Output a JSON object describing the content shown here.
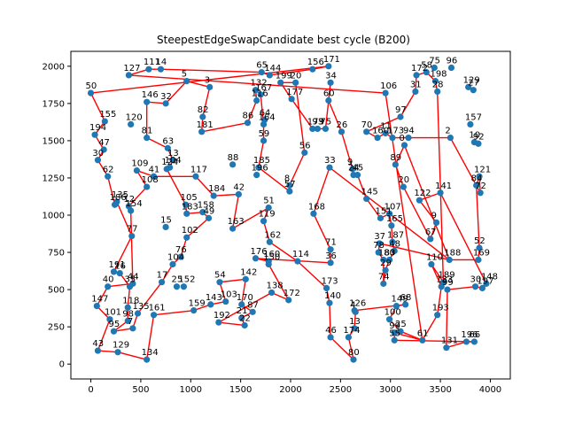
{
  "chart_data": {
    "type": "scatter",
    "title": "SteepestEdgeSwapCandidate best cycle (B200)",
    "xlabel": "",
    "ylabel": "",
    "xlim": [
      -200,
      4200
    ],
    "ylim": [
      -100,
      2100
    ],
    "x_ticks": [
      0,
      500,
      1000,
      1500,
      2000,
      2500,
      3000,
      3500,
      4000
    ],
    "y_ticks": [
      0,
      250,
      500,
      750,
      1000,
      1250,
      1500,
      1750,
      2000
    ],
    "grid": false,
    "legend": "none",
    "colors": {
      "points": "#1f77b4",
      "cycle": "#ff0000"
    },
    "points": [
      {
        "id": "50",
        "x": 0,
        "y": 1820
      },
      {
        "id": "127",
        "x": 380,
        "y": 1940
      },
      {
        "id": "111",
        "x": 580,
        "y": 1980
      },
      {
        "id": "14",
        "x": 700,
        "y": 1980
      },
      {
        "id": "5",
        "x": 960,
        "y": 1900
      },
      {
        "id": "3",
        "x": 1190,
        "y": 1860
      },
      {
        "id": "146",
        "x": 560,
        "y": 1760
      },
      {
        "id": "32",
        "x": 750,
        "y": 1750
      },
      {
        "id": "155",
        "x": 140,
        "y": 1630
      },
      {
        "id": "120",
        "x": 400,
        "y": 1610
      },
      {
        "id": "194",
        "x": 40,
        "y": 1540
      },
      {
        "id": "81",
        "x": 560,
        "y": 1520
      },
      {
        "id": "82",
        "x": 1120,
        "y": 1660
      },
      {
        "id": "181",
        "x": 1110,
        "y": 1560
      },
      {
        "id": "86",
        "x": 1570,
        "y": 1620
      },
      {
        "id": "65",
        "x": 1710,
        "y": 1960
      },
      {
        "id": "144",
        "x": 1790,
        "y": 1940
      },
      {
        "id": "156",
        "x": 2220,
        "y": 1980
      },
      {
        "id": "171",
        "x": 2380,
        "y": 2000
      },
      {
        "id": "132",
        "x": 1650,
        "y": 1840
      },
      {
        "id": "116",
        "x": 1660,
        "y": 1770
      },
      {
        "id": "167",
        "x": 1700,
        "y": 1810
      },
      {
        "id": "199",
        "x": 1900,
        "y": 1890
      },
      {
        "id": "20",
        "x": 2050,
        "y": 1890
      },
      {
        "id": "34",
        "x": 2400,
        "y": 1890
      },
      {
        "id": "177",
        "x": 2010,
        "y": 1780
      },
      {
        "id": "60",
        "x": 2380,
        "y": 1770
      },
      {
        "id": "64",
        "x": 1740,
        "y": 1640
      },
      {
        "id": "164",
        "x": 1730,
        "y": 1610
      },
      {
        "id": "59",
        "x": 1730,
        "y": 1500
      },
      {
        "id": "179",
        "x": 2220,
        "y": 1580
      },
      {
        "id": "93",
        "x": 2270,
        "y": 1580
      },
      {
        "id": "75",
        "x": 2350,
        "y": 1580
      },
      {
        "id": "26",
        "x": 2510,
        "y": 1560
      },
      {
        "id": "56",
        "x": 2140,
        "y": 1420
      },
      {
        "id": "33",
        "x": 2390,
        "y": 1320
      },
      {
        "id": "47",
        "x": 130,
        "y": 1440
      },
      {
        "id": "30",
        "x": 70,
        "y": 1370
      },
      {
        "id": "109",
        "x": 460,
        "y": 1300
      },
      {
        "id": "41",
        "x": 630,
        "y": 1260
      },
      {
        "id": "63",
        "x": 770,
        "y": 1450
      },
      {
        "id": "13",
        "x": 820,
        "y": 1370
      },
      {
        "id": "104",
        "x": 790,
        "y": 1320
      },
      {
        "id": "124",
        "x": 760,
        "y": 1310
      },
      {
        "id": "62",
        "x": 170,
        "y": 1260
      },
      {
        "id": "108",
        "x": 560,
        "y": 1190
      },
      {
        "id": "117",
        "x": 1050,
        "y": 1260
      },
      {
        "id": "88",
        "x": 1420,
        "y": 1340
      },
      {
        "id": "185",
        "x": 1680,
        "y": 1320
      },
      {
        "id": "196",
        "x": 1660,
        "y": 1270
      },
      {
        "id": "8",
        "x": 1990,
        "y": 1200
      },
      {
        "id": "57",
        "x": 1990,
        "y": 1160
      },
      {
        "id": "42",
        "x": 1480,
        "y": 1140
      },
      {
        "id": "184",
        "x": 1230,
        "y": 1130
      },
      {
        "id": "135",
        "x": 260,
        "y": 1090
      },
      {
        "id": "186",
        "x": 240,
        "y": 1070
      },
      {
        "id": "12",
        "x": 380,
        "y": 1060
      },
      {
        "id": "154",
        "x": 400,
        "y": 1030
      },
      {
        "id": "105",
        "x": 950,
        "y": 1070
      },
      {
        "id": "183",
        "x": 960,
        "y": 1010
      },
      {
        "id": "158",
        "x": 1120,
        "y": 1020
      },
      {
        "id": "49",
        "x": 1180,
        "y": 980
      },
      {
        "id": "163",
        "x": 1420,
        "y": 910
      },
      {
        "id": "51",
        "x": 1780,
        "y": 1050
      },
      {
        "id": "119",
        "x": 1730,
        "y": 960
      },
      {
        "id": "168",
        "x": 2230,
        "y": 1010
      },
      {
        "id": "15",
        "x": 750,
        "y": 920
      },
      {
        "id": "77",
        "x": 410,
        "y": 860
      },
      {
        "id": "102",
        "x": 960,
        "y": 850
      },
      {
        "id": "76",
        "x": 900,
        "y": 720
      },
      {
        "id": "104b",
        "x": 820,
        "y": 670
      },
      {
        "id": "162",
        "x": 1790,
        "y": 820
      },
      {
        "id": "176",
        "x": 1650,
        "y": 710
      },
      {
        "id": "160",
        "x": 1780,
        "y": 690
      },
      {
        "id": "150",
        "x": 1780,
        "y": 670
      },
      {
        "id": "114",
        "x": 2070,
        "y": 690
      },
      {
        "id": "71",
        "x": 2400,
        "y": 770
      },
      {
        "id": "36",
        "x": 2400,
        "y": 680
      },
      {
        "id": "191",
        "x": 230,
        "y": 620
      },
      {
        "id": "16",
        "x": 290,
        "y": 610
      },
      {
        "id": "40",
        "x": 170,
        "y": 520
      },
      {
        "id": "44",
        "x": 420,
        "y": 540
      },
      {
        "id": "35",
        "x": 390,
        "y": 520
      },
      {
        "id": "17",
        "x": 710,
        "y": 550
      },
      {
        "id": "25",
        "x": 860,
        "y": 520
      },
      {
        "id": "152",
        "x": 930,
        "y": 520
      },
      {
        "id": "54",
        "x": 1290,
        "y": 550
      },
      {
        "id": "142",
        "x": 1550,
        "y": 570
      },
      {
        "id": "138",
        "x": 1810,
        "y": 480
      },
      {
        "id": "172",
        "x": 1980,
        "y": 430
      },
      {
        "id": "173",
        "x": 2360,
        "y": 510
      },
      {
        "id": "147",
        "x": 60,
        "y": 390
      },
      {
        "id": "118",
        "x": 370,
        "y": 380
      },
      {
        "id": "135b",
        "x": 470,
        "y": 340
      },
      {
        "id": "161",
        "x": 630,
        "y": 330
      },
      {
        "id": "159",
        "x": 1030,
        "y": 360
      },
      {
        "id": "143",
        "x": 1200,
        "y": 400
      },
      {
        "id": "103",
        "x": 1350,
        "y": 420
      },
      {
        "id": "170",
        "x": 1510,
        "y": 400
      },
      {
        "id": "87",
        "x": 1620,
        "y": 350
      },
      {
        "id": "140",
        "x": 2390,
        "y": 410
      },
      {
        "id": "101",
        "x": 190,
        "y": 300
      },
      {
        "id": "98",
        "x": 370,
        "y": 290
      },
      {
        "id": "192",
        "x": 1280,
        "y": 280
      },
      {
        "id": "21",
        "x": 1510,
        "y": 310
      },
      {
        "id": "22",
        "x": 1540,
        "y": 260
      },
      {
        "id": "95",
        "x": 230,
        "y": 220
      },
      {
        "id": "7",
        "x": 420,
        "y": 240
      },
      {
        "id": "43",
        "x": 70,
        "y": 90
      },
      {
        "id": "129",
        "x": 270,
        "y": 80
      },
      {
        "id": "134",
        "x": 560,
        "y": 30
      },
      {
        "id": "46",
        "x": 2400,
        "y": 180
      },
      {
        "id": "174",
        "x": 2580,
        "y": 180
      },
      {
        "id": "80",
        "x": 2630,
        "y": 30
      },
      {
        "id": "106",
        "x": 2950,
        "y": 1820
      },
      {
        "id": "70",
        "x": 2760,
        "y": 1560
      },
      {
        "id": "11",
        "x": 2950,
        "y": 1550
      },
      {
        "id": "160b",
        "x": 2870,
        "y": 1520
      },
      {
        "id": "173b",
        "x": 3020,
        "y": 1520
      },
      {
        "id": "97",
        "x": 3100,
        "y": 1660
      },
      {
        "id": "31",
        "x": 3250,
        "y": 1830
      },
      {
        "id": "172b",
        "x": 3260,
        "y": 1940
      },
      {
        "id": "58",
        "x": 3360,
        "y": 1960
      },
      {
        "id": "75b",
        "x": 3440,
        "y": 1990
      },
      {
        "id": "198",
        "x": 3450,
        "y": 1900
      },
      {
        "id": "28",
        "x": 3470,
        "y": 1830
      },
      {
        "id": "96",
        "x": 3610,
        "y": 1990
      },
      {
        "id": "129b",
        "x": 3780,
        "y": 1860
      },
      {
        "id": "27",
        "x": 3830,
        "y": 1840
      },
      {
        "id": "157",
        "x": 3800,
        "y": 1610
      },
      {
        "id": "2",
        "x": 3600,
        "y": 1520
      },
      {
        "id": "94",
        "x": 3180,
        "y": 1520
      },
      {
        "id": "10",
        "x": 3840,
        "y": 1490
      },
      {
        "id": "92",
        "x": 3880,
        "y": 1480
      },
      {
        "id": "0",
        "x": 3140,
        "y": 1470
      },
      {
        "id": "89",
        "x": 3050,
        "y": 1340
      },
      {
        "id": "9",
        "x": 2620,
        "y": 1310
      },
      {
        "id": "24",
        "x": 2630,
        "y": 1270
      },
      {
        "id": "45",
        "x": 2670,
        "y": 1270
      },
      {
        "id": "20b",
        "x": 3130,
        "y": 1190
      },
      {
        "id": "145",
        "x": 2760,
        "y": 1110
      },
      {
        "id": "122",
        "x": 3290,
        "y": 1100
      },
      {
        "id": "141",
        "x": 3500,
        "y": 1150
      },
      {
        "id": "84",
        "x": 3860,
        "y": 1200
      },
      {
        "id": "121",
        "x": 3890,
        "y": 1260
      },
      {
        "id": "72",
        "x": 3900,
        "y": 1150
      },
      {
        "id": "107",
        "x": 2990,
        "y": 1010
      },
      {
        "id": "151",
        "x": 2900,
        "y": 980
      },
      {
        "id": "165",
        "x": 3010,
        "y": 930
      },
      {
        "id": "9b",
        "x": 3460,
        "y": 950
      },
      {
        "id": "67",
        "x": 3400,
        "y": 840
      },
      {
        "id": "37",
        "x": 2890,
        "y": 810
      },
      {
        "id": "187",
        "x": 3020,
        "y": 820
      },
      {
        "id": "48",
        "x": 3040,
        "y": 760
      },
      {
        "id": "78",
        "x": 2880,
        "y": 750
      },
      {
        "id": "180",
        "x": 2930,
        "y": 700
      },
      {
        "id": "83",
        "x": 2990,
        "y": 700
      },
      {
        "id": "29",
        "x": 2950,
        "y": 630
      },
      {
        "id": "74",
        "x": 2930,
        "y": 540
      },
      {
        "id": "188",
        "x": 3590,
        "y": 700
      },
      {
        "id": "169",
        "x": 3880,
        "y": 700
      },
      {
        "id": "52",
        "x": 3890,
        "y": 780
      },
      {
        "id": "110",
        "x": 3410,
        "y": 670
      },
      {
        "id": "148",
        "x": 3960,
        "y": 540
      },
      {
        "id": "189",
        "x": 3530,
        "y": 550
      },
      {
        "id": "133",
        "x": 3510,
        "y": 520
      },
      {
        "id": "99",
        "x": 3570,
        "y": 500
      },
      {
        "id": "30b",
        "x": 3850,
        "y": 520
      },
      {
        "id": "197",
        "x": 3920,
        "y": 510
      },
      {
        "id": "126",
        "x": 2640,
        "y": 360
      },
      {
        "id": "149",
        "x": 3060,
        "y": 390
      },
      {
        "id": "68",
        "x": 3150,
        "y": 400
      },
      {
        "id": "193",
        "x": 3470,
        "y": 330
      },
      {
        "id": "100",
        "x": 2990,
        "y": 300
      },
      {
        "id": "25b",
        "x": 3100,
        "y": 220
      },
      {
        "id": "99b",
        "x": 3040,
        "y": 210
      },
      {
        "id": "55",
        "x": 3040,
        "y": 160
      },
      {
        "id": "61",
        "x": 3320,
        "y": 160
      },
      {
        "id": "131",
        "x": 3560,
        "y": 110
      },
      {
        "id": "196b",
        "x": 3760,
        "y": 150
      },
      {
        "id": "66",
        "x": 3840,
        "y": 150
      },
      {
        "id": "4",
        "x": 2650,
        "y": 350
      },
      {
        "id": "13b",
        "x": 2640,
        "y": 240
      }
    ],
    "cycle": [
      "50",
      "155",
      "194",
      "47",
      "30",
      "62",
      "186",
      "135",
      "77",
      "191",
      "16",
      "35",
      "118",
      "98",
      "95",
      "7",
      "135b",
      "17",
      "104b",
      "76",
      "102",
      "49",
      "158",
      "183",
      "105",
      "124",
      "104",
      "13",
      "63",
      "81",
      "146",
      "32",
      "5",
      "3",
      "82",
      "181",
      "86",
      "116",
      "132",
      "167",
      "164",
      "59",
      "185",
      "57",
      "8",
      "56",
      "20",
      "199",
      "177",
      "179",
      "93",
      "75",
      "34",
      "60",
      "26",
      "9",
      "24",
      "45",
      "145",
      "151",
      "107",
      "165",
      "187",
      "48",
      "83",
      "29",
      "74",
      "180",
      "78",
      "37",
      "188",
      "169",
      "52",
      "84",
      "121",
      "72",
      "2",
      "94",
      "173b",
      "11",
      "160b",
      "70",
      "97",
      "31",
      "172b",
      "58",
      "198",
      "28",
      "189",
      "110",
      "133",
      "193",
      "61",
      "25b",
      "100",
      "149",
      "68",
      "126",
      "4",
      "13b",
      "174",
      "80",
      "46",
      "140",
      "173",
      "114",
      "162",
      "119",
      "51",
      "163",
      "42",
      "184",
      "117",
      "41",
      "109",
      "108",
      "12",
      "154",
      "44",
      "40",
      "147",
      "101",
      "43",
      "129",
      "134",
      "161",
      "159",
      "143",
      "103",
      "54",
      "142",
      "170",
      "87",
      "21",
      "22",
      "192",
      "138",
      "172",
      "150",
      "160",
      "176",
      "36",
      "71",
      "168",
      "33",
      "188",
      "0",
      "89",
      "20b",
      "67",
      "9b",
      "122",
      "141",
      "148",
      "197",
      "30b",
      "99",
      "131",
      "196b",
      "66",
      "55",
      "99b",
      "61",
      "106",
      "127",
      "111",
      "14",
      "65",
      "144",
      "156",
      "171",
      "50"
    ]
  }
}
